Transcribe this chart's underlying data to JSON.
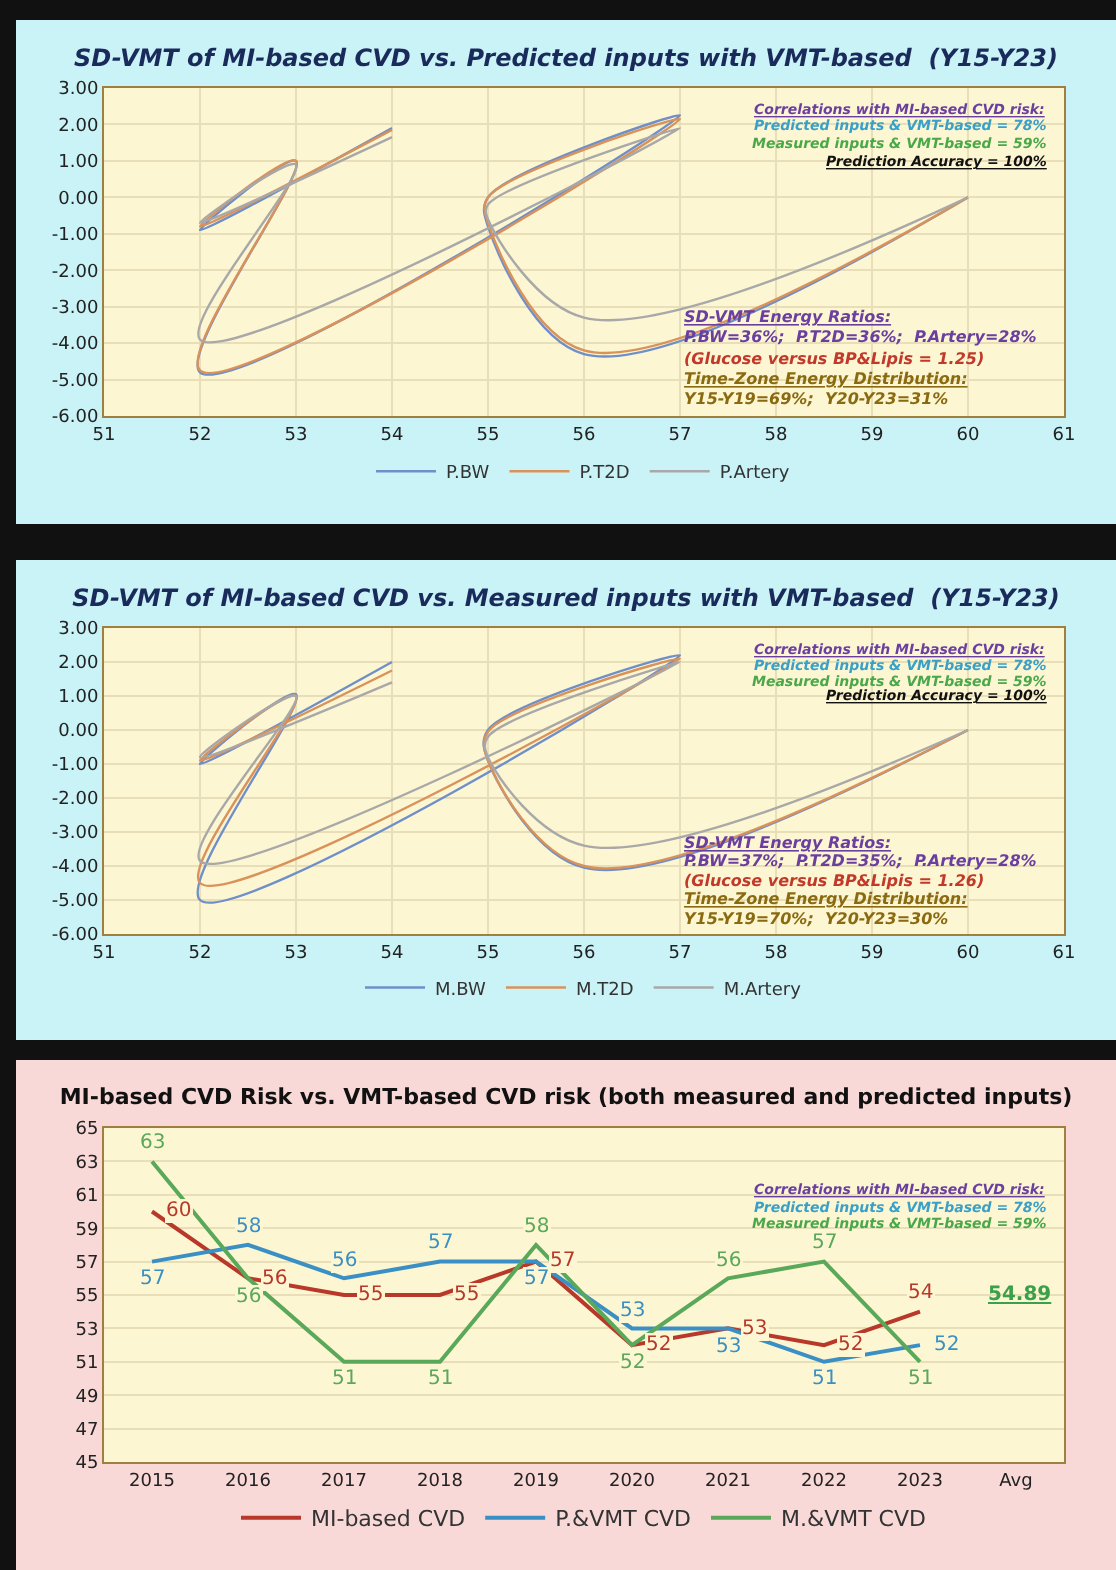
{
  "chart_data": [
    {
      "type": "line",
      "title": "SD-VMT of MI-based CVD vs. Predicted inputs with VMT-based  (Y15-Y23)",
      "xlim": [
        51,
        61
      ],
      "xticks": [
        51,
        52,
        53,
        54,
        55,
        56,
        57,
        58,
        59,
        60,
        61
      ],
      "ylim": [
        -6,
        3
      ],
      "yticks": [
        {
          "value": 3,
          "label": "3.00"
        },
        {
          "value": 2,
          "label": "2.00"
        },
        {
          "value": 1,
          "label": "1.00"
        },
        {
          "value": 0,
          "label": "0.00"
        },
        {
          "value": -1,
          "label": "-1.00"
        },
        {
          "value": -2,
          "label": "-2.00"
        },
        {
          "value": -3,
          "label": "-3.00"
        },
        {
          "value": -4,
          "label": "-4.00"
        },
        {
          "value": -5,
          "label": "-5.00"
        },
        {
          "value": -6,
          "label": "-6.00"
        }
      ],
      "grid": true,
      "legend": "bottom",
      "marker": "none",
      "line_style": "solid",
      "series": [
        {
          "name": "P.BW",
          "color": "#6f8fc9",
          "x": [
            60,
            56,
            55,
            55,
            57,
            52,
            53,
            52,
            54
          ],
          "values": [
            0,
            -4.3,
            -0.8,
            0,
            2.25,
            -4.8,
            1,
            -0.9,
            1.9
          ]
        },
        {
          "name": "P.T2D",
          "color": "#d9925a",
          "x": [
            60,
            56,
            55,
            55,
            57,
            52,
            53,
            52,
            54
          ],
          "values": [
            0,
            -4.2,
            -0.7,
            0,
            2.15,
            -4.75,
            1,
            -0.8,
            1.85
          ]
        },
        {
          "name": "P.Artery",
          "color": "#a8a8a8",
          "x": [
            60,
            56,
            55,
            55,
            57,
            52,
            53,
            52,
            54
          ],
          "values": [
            0,
            -3.3,
            -0.6,
            -0.2,
            1.9,
            -3.9,
            0.9,
            -0.7,
            1.65
          ]
        }
      ],
      "annotations": [
        "Correlations with MI-based CVD risk:",
        "Predicted inputs & VMT-based = 78%",
        "Measured inputs & VMT-based = 59%",
        "Prediction Accuracy = 100%",
        "SD-VMT Energy Ratios:",
        "P.BW=36%;  P.T2D=36%;  P.Artery=28%",
        "(Glucose versus BP&Lipis = 1.25)",
        "Time-Zone Energy Distribution:",
        "Y15-Y19=69%;  Y20-Y23=31%"
      ]
    },
    {
      "type": "line",
      "title": "SD-VMT of MI-based CVD vs. Measured inputs with VMT-based  (Y15-Y23)",
      "xlim": [
        51,
        61
      ],
      "xticks": [
        51,
        52,
        53,
        54,
        55,
        56,
        57,
        58,
        59,
        60,
        61
      ],
      "ylim": [
        -6,
        3
      ],
      "yticks": [
        {
          "value": 3,
          "label": "3.00"
        },
        {
          "value": 2,
          "label": "2.00"
        },
        {
          "value": 1,
          "label": "1.00"
        },
        {
          "value": 0,
          "label": "0.00"
        },
        {
          "value": -1,
          "label": "-1.00"
        },
        {
          "value": -2,
          "label": "-2.00"
        },
        {
          "value": -3,
          "label": "-3.00"
        },
        {
          "value": -4,
          "label": "-4.00"
        },
        {
          "value": -5,
          "label": "-5.00"
        },
        {
          "value": -6,
          "label": "-6.00"
        }
      ],
      "grid": true,
      "legend": "bottom",
      "marker": "none",
      "line_style": "solid",
      "series": [
        {
          "name": "M.BW",
          "color": "#6f8fc9",
          "x": [
            60,
            56,
            55,
            55,
            57,
            52,
            53,
            52,
            54
          ],
          "values": [
            0,
            -4.05,
            -0.9,
            0,
            2.2,
            -5,
            1.05,
            -1,
            2
          ]
        },
        {
          "name": "M.T2D",
          "color": "#d9925a",
          "x": [
            60,
            56,
            55,
            55,
            57,
            52,
            53,
            52,
            54
          ],
          "values": [
            0,
            -4,
            -0.9,
            -0.05,
            2.1,
            -4.5,
            1,
            -0.9,
            1.75
          ]
        },
        {
          "name": "M.Artery",
          "color": "#a8a8a8",
          "x": [
            60,
            56,
            55,
            55,
            57,
            52,
            53,
            52,
            54
          ],
          "values": [
            0,
            -3.4,
            -0.8,
            -0.2,
            2,
            -3.85,
            1,
            -0.8,
            1.4
          ]
        }
      ],
      "annotations": [
        "Correlations with MI-based CVD risk:",
        "Predicted inputs & VMT-based = 78%",
        "Measured inputs & VMT-based = 59%",
        "Prediction Accuracy = 100%",
        "SD-VMT Energy Ratios:",
        "P.BW=37%;  P.T2D=35%;  P.Artery=28%",
        "(Glucose versus BP&Lipis = 1.26)",
        "Time-Zone Energy Distribution:",
        "Y15-Y19=70%;  Y20-Y23=30%"
      ]
    },
    {
      "type": "line",
      "title": "MI-based CVD Risk vs. VMT-based CVD risk (both measured and predicted inputs)",
      "categories": [
        "2015",
        "2016",
        "2017",
        "2018",
        "2019",
        "2020",
        "2021",
        "2022",
        "2023",
        "Avg"
      ],
      "ylim": [
        45,
        65
      ],
      "yticks": [
        45,
        47,
        49,
        51,
        53,
        55,
        57,
        59,
        61,
        63,
        65
      ],
      "grid": "y",
      "legend": "bottom",
      "marker": "none",
      "line_style": "solid",
      "data_labels": true,
      "series": [
        {
          "name": "MI-based CVD",
          "color": "#b8382a",
          "values": [
            60,
            56,
            55,
            55,
            57,
            52,
            53,
            52,
            54,
            null
          ]
        },
        {
          "name": "P.&VMT CVD",
          "color": "#3a8fc4",
          "values": [
            57,
            58,
            56,
            57,
            57,
            53,
            53,
            51,
            52,
            null
          ]
        },
        {
          "name": "M.&VMT CVD",
          "color": "#5aa85a",
          "values": [
            63,
            56,
            51,
            51,
            58,
            52,
            56,
            57,
            51,
            null
          ]
        }
      ],
      "annotations": [
        "Correlations with MI-based CVD risk:",
        "Predicted inputs & VMT-based = 78%",
        "Measured inputs & VMT-based = 59%",
        "54.89"
      ]
    }
  ]
}
